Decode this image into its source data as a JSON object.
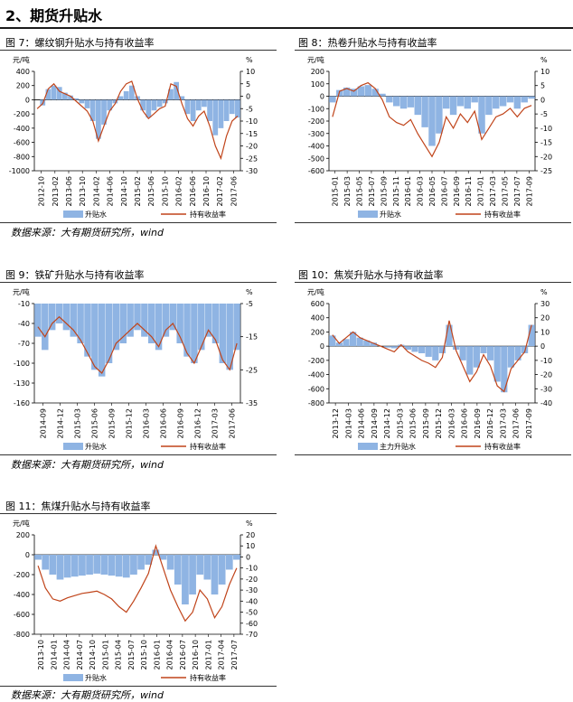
{
  "section_title": "2、期货升贴水",
  "source_text": "数据来源：大有期货研究所，wind",
  "colors": {
    "bar": "#8fb4e3",
    "line": "#c0441a",
    "axis": "#000000"
  },
  "chart_data": [
    {
      "id": "fig7",
      "type": "bar+line",
      "title": "图 7：螺纹钢升贴水与持有收益率",
      "left_unit": "元/吨",
      "right_unit": "%",
      "left_ticks": [
        "400",
        "200",
        "0",
        "-200",
        "-400",
        "-600",
        "-800",
        "-1000"
      ],
      "right_ticks": [
        "10",
        "5",
        "0",
        "-5",
        "-10",
        "-15",
        "-20",
        "-25",
        "-30"
      ],
      "left_range": [
        -1000,
        400
      ],
      "right_range": [
        -30,
        10
      ],
      "x_labels": [
        "2012-10",
        "2013-02",
        "2013-06",
        "2013-10",
        "2014-02",
        "2014-06",
        "2014-10",
        "2015-02",
        "2015-06",
        "2015-10",
        "2016-02",
        "2016-06",
        "2016-10",
        "2017-02",
        "2017-06"
      ],
      "legend": [
        "升贴水",
        "持有收益率"
      ],
      "bar_series": [
        0,
        -80,
        150,
        200,
        180,
        100,
        60,
        20,
        -50,
        -120,
        -300,
        -550,
        -350,
        -150,
        -50,
        50,
        120,
        200,
        50,
        -150,
        -250,
        -150,
        -100,
        -50,
        150,
        250,
        50,
        -200,
        -300,
        -150,
        -100,
        -300,
        -500,
        -400,
        -300,
        -200,
        -250
      ],
      "line_series": [
        -5,
        -3,
        3,
        5,
        2,
        1,
        0,
        -2,
        -4,
        -6,
        -10,
        -18,
        -12,
        -6,
        -3,
        2,
        5,
        6,
        -1,
        -6,
        -9,
        -7,
        -5,
        -4,
        5,
        4,
        -3,
        -9,
        -12,
        -8,
        -6,
        -12,
        -20,
        -25,
        -16,
        -10,
        -8
      ]
    },
    {
      "id": "fig8",
      "type": "bar+line",
      "title": "图 8：热卷升贴水与持有收益率",
      "left_unit": "元/吨",
      "right_unit": "%",
      "left_ticks": [
        "200",
        "100",
        "0",
        "-100",
        "-200",
        "-300",
        "-400",
        "-500",
        "-600"
      ],
      "right_ticks": [
        "10",
        "5",
        "0",
        "-5",
        "-10",
        "-15",
        "-20",
        "-25"
      ],
      "left_range": [
        -600,
        200
      ],
      "right_range": [
        -25,
        10
      ],
      "x_labels": [
        "2015-01",
        "2015-03",
        "2015-05",
        "2015-07",
        "2015-09",
        "2015-11",
        "2016-01",
        "2016-03",
        "2016-05",
        "2016-07",
        "2016-09",
        "2016-11",
        "2017-01",
        "2017-03",
        "2017-05",
        "2017-07",
        "2017-09"
      ],
      "legend": [
        "升贴水",
        "持有收益率"
      ],
      "bar_series": [
        -50,
        50,
        70,
        60,
        80,
        90,
        60,
        20,
        -50,
        -80,
        -100,
        -90,
        -150,
        -250,
        -400,
        -300,
        -100,
        -150,
        -80,
        -100,
        -50,
        -300,
        -150,
        -100,
        -80,
        -50,
        -100,
        -50,
        -20
      ],
      "line_series": [
        -6,
        3,
        4,
        3,
        5,
        6,
        4,
        0,
        -6,
        -8,
        -9,
        -7,
        -12,
        -16,
        -20,
        -15,
        -6,
        -10,
        -5,
        -8,
        -4,
        -14,
        -10,
        -6,
        -5,
        -3,
        -6,
        -3,
        -2
      ]
    },
    {
      "id": "fig9",
      "type": "bar+line",
      "title": "图 9：铁矿升贴水与持有收益率",
      "left_unit": "元/吨",
      "right_unit": "%",
      "left_ticks": [
        "-10",
        "-40",
        "-70",
        "-100",
        "-130",
        "-160"
      ],
      "right_ticks": [
        "-5",
        "-15",
        "-25",
        "-35"
      ],
      "left_range": [
        -160,
        -10
      ],
      "right_range": [
        -35,
        -5
      ],
      "x_labels": [
        "2014-09",
        "2014-12",
        "2015-03",
        "2015-06",
        "2015-09",
        "2015-12",
        "2016-03",
        "2016-06",
        "2016-09",
        "2016-12",
        "2017-03",
        "2017-06"
      ],
      "legend": [
        "升贴水",
        "持有收益率"
      ],
      "bar_series": [
        -60,
        -80,
        -50,
        -40,
        -50,
        -60,
        -70,
        -90,
        -110,
        -120,
        -100,
        -80,
        -70,
        -60,
        -50,
        -60,
        -70,
        -80,
        -60,
        -50,
        -70,
        -90,
        -100,
        -80,
        -60,
        -70,
        -100,
        -110,
        -80
      ],
      "line_series": [
        -12,
        -15,
        -11,
        -9,
        -11,
        -13,
        -16,
        -20,
        -24,
        -26,
        -22,
        -17,
        -15,
        -13,
        -11,
        -13,
        -15,
        -18,
        -13,
        -11,
        -15,
        -20,
        -23,
        -18,
        -13,
        -16,
        -22,
        -25,
        -17
      ]
    },
    {
      "id": "fig10",
      "type": "bar+line",
      "title": "图 10：焦炭升贴水与持有收益率",
      "left_unit": "元/吨",
      "right_unit": "%",
      "left_ticks": [
        "600",
        "400",
        "200",
        "0",
        "-200",
        "-400",
        "-600",
        "-800"
      ],
      "right_ticks": [
        "30",
        "20",
        "10",
        "0",
        "-10",
        "-20",
        "-30",
        "-40"
      ],
      "left_range": [
        -800,
        600
      ],
      "right_range": [
        -40,
        30
      ],
      "x_labels": [
        "2013-12",
        "2014-03",
        "2014-06",
        "2014-09",
        "2014-12",
        "2015-03",
        "2015-06",
        "2015-09",
        "2015-12",
        "2016-03",
        "2016-06",
        "2016-09",
        "2016-12",
        "2017-03",
        "2017-06",
        "2017-09"
      ],
      "legend": [
        "主力升贴水",
        "持有收益率"
      ],
      "bar_series": [
        150,
        50,
        100,
        200,
        120,
        80,
        50,
        0,
        -20,
        -30,
        20,
        -50,
        -80,
        -100,
        -150,
        -200,
        -100,
        300,
        -50,
        -200,
        -400,
        -300,
        -100,
        -200,
        -500,
        -650,
        -300,
        -200,
        -100,
        300
      ],
      "line_series": [
        8,
        2,
        6,
        10,
        6,
        4,
        2,
        0,
        -2,
        -4,
        1,
        -4,
        -7,
        -10,
        -12,
        -15,
        -8,
        18,
        -3,
        -14,
        -25,
        -18,
        -6,
        -14,
        -28,
        -32,
        -16,
        -10,
        -4,
        15
      ]
    },
    {
      "id": "fig11",
      "type": "bar+line",
      "title": "图 11：焦煤升贴水与持有收益率",
      "left_unit": "元/吨",
      "right_unit": "%",
      "left_ticks": [
        "200",
        "0",
        "-200",
        "-400",
        "-600",
        "-800"
      ],
      "right_ticks": [
        "20",
        "10",
        "0",
        "-10",
        "-20",
        "-30",
        "-40",
        "-50",
        "-60",
        "-70"
      ],
      "left_range": [
        -800,
        200
      ],
      "right_range": [
        -70,
        20
      ],
      "x_labels": [
        "2013-10",
        "2014-01",
        "2014-04",
        "2014-07",
        "2014-10",
        "2015-01",
        "2015-04",
        "2015-07",
        "2015-10",
        "2016-01",
        "2016-04",
        "2016-07",
        "2016-10",
        "2017-01",
        "2017-04",
        "2017-07"
      ],
      "legend": [
        "升贴水",
        "持有收益率"
      ],
      "bar_series": [
        -50,
        -150,
        -200,
        -250,
        -230,
        -220,
        -210,
        -200,
        -190,
        -200,
        -210,
        -220,
        -230,
        -200,
        -150,
        -100,
        50,
        -50,
        -150,
        -300,
        -500,
        -400,
        -200,
        -250,
        -400,
        -300,
        -150,
        -50
      ],
      "line_series": [
        -8,
        -28,
        -38,
        -40,
        -37,
        -35,
        -33,
        -32,
        -31,
        -34,
        -38,
        -45,
        -50,
        -40,
        -28,
        -15,
        10,
        -10,
        -30,
        -45,
        -58,
        -50,
        -30,
        -38,
        -55,
        -45,
        -25,
        -10
      ]
    }
  ]
}
